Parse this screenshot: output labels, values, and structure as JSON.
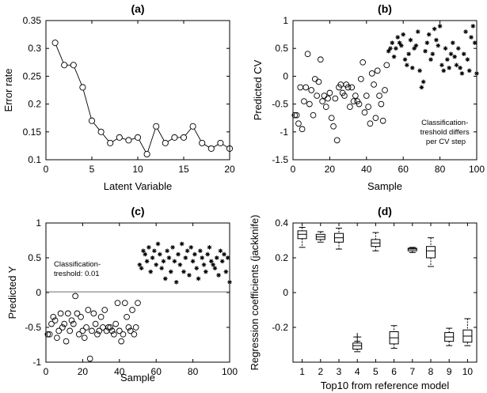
{
  "figure": {
    "panels": [
      {
        "chart_data": {
          "type": "line",
          "title": "(a)",
          "xlabel": "Latent Variable",
          "ylabel": "Error rate",
          "xlim": [
            0,
            20
          ],
          "ylim": [
            0.1,
            0.35
          ],
          "xticks": [
            0,
            5,
            10,
            15,
            20
          ],
          "xtick_labels": [
            "0",
            "5",
            "10",
            "15",
            "20"
          ],
          "yticks": [
            0.1,
            0.15,
            0.2,
            0.25,
            0.3,
            0.35
          ],
          "ytick_labels": [
            "0.1",
            "0.15",
            "0.2",
            "0.25",
            "0.3",
            "0.35"
          ],
          "series": [
            {
              "name": "error rate",
              "x": [
                1,
                2,
                3,
                4,
                5,
                6,
                7,
                8,
                9,
                10,
                11,
                12,
                13,
                14,
                15,
                16,
                17,
                18,
                19,
                20
              ],
              "y": [
                0.31,
                0.27,
                0.27,
                0.23,
                0.17,
                0.15,
                0.13,
                0.14,
                0.135,
                0.14,
                0.11,
                0.16,
                0.13,
                0.14,
                0.14,
                0.16,
                0.13,
                0.12,
                0.13,
                0.12
              ]
            }
          ],
          "annotations": []
        }
      },
      {
        "chart_data": {
          "type": "scatter",
          "title": "(b)",
          "xlabel": "Sample",
          "ylabel": "Predicted CV",
          "xlim": [
            0,
            100
          ],
          "ylim": [
            -1.5,
            1
          ],
          "xticks": [
            0,
            20,
            40,
            60,
            80,
            100
          ],
          "xtick_labels": [
            "0",
            "20",
            "40",
            "60",
            "80",
            "100"
          ],
          "yticks": [
            -1.5,
            -1,
            -0.5,
            0,
            0.5,
            1
          ],
          "ytick_labels": [
            "-1.5",
            "-1",
            "-0.5",
            "0",
            "0.5",
            "1"
          ],
          "series": [
            {
              "name": "class 1",
              "marker": "circle",
              "x": [
                1,
                2,
                3,
                4,
                5,
                6,
                7,
                8,
                9,
                10,
                11,
                12,
                13,
                14,
                15,
                16,
                17,
                18,
                19,
                20,
                21,
                22,
                23,
                24,
                25,
                26,
                27,
                28,
                29,
                30,
                31,
                32,
                33,
                34,
                35,
                36,
                37,
                38,
                39,
                40,
                41,
                42,
                43,
                44,
                45,
                46,
                47,
                48,
                49,
                50,
                51
              ],
              "y": [
                -0.7,
                -0.7,
                -0.85,
                -0.2,
                -0.95,
                -0.45,
                -0.2,
                0.4,
                -0.5,
                -0.25,
                -0.7,
                -0.05,
                -0.35,
                -0.1,
                0.3,
                -0.45,
                -0.35,
                -0.55,
                -0.4,
                -0.3,
                -0.75,
                -0.9,
                -0.4,
                -1.15,
                -0.2,
                -0.15,
                -0.3,
                -0.35,
                -0.15,
                -0.2,
                -0.55,
                -0.2,
                -0.45,
                -0.35,
                -0.45,
                -0.5,
                -0.05,
                0.25,
                -0.65,
                -0.35,
                -0.55,
                -0.85,
                0.05,
                -0.15,
                -0.75,
                0.1,
                -0.35,
                -0.5,
                -0.8,
                -0.25,
                0.2
              ]
            },
            {
              "name": "class 2",
              "marker": "star",
              "x": [
                52,
                53,
                54,
                55,
                56,
                57,
                58,
                59,
                60,
                61,
                62,
                63,
                64,
                65,
                66,
                67,
                68,
                69,
                70,
                71,
                72,
                73,
                74,
                75,
                76,
                77,
                78,
                79,
                80,
                81,
                82,
                83,
                84,
                85,
                86,
                87,
                88,
                89,
                90,
                91,
                92,
                93,
                94,
                95,
                96,
                97,
                98,
                99,
                100
              ],
              "y": [
                0.45,
                0.5,
                0.6,
                0.35,
                0.5,
                0.7,
                0.6,
                0.55,
                0.75,
                0.3,
                0.2,
                0.4,
                0.65,
                0.15,
                0.5,
                0.55,
                0.8,
                0.1,
                -0.2,
                -0.1,
                0.45,
                0.6,
                0.75,
                0.3,
                0.4,
                0.85,
                0.65,
                0.55,
                0.9,
                0.2,
                0.1,
                0.5,
                0.3,
                0.15,
                0.4,
                0.6,
                0.35,
                0.2,
                0.5,
                0.15,
                0.05,
                0.4,
                0.8,
                0.3,
                0.1,
                0.7,
                0.9,
                0.6,
                0.05
              ]
            }
          ],
          "annotations": [
            {
              "lines": [
                "Classification-",
                "treshold differs",
                "per CV step"
              ],
              "x": 83,
              "y": -0.75
            }
          ]
        }
      },
      {
        "chart_data": {
          "type": "scatter",
          "title": "(c)",
          "xlabel": "Sample",
          "ylabel": "Predicted Y",
          "xlim": [
            0,
            100
          ],
          "ylim": [
            -1,
            1
          ],
          "xticks": [
            0,
            20,
            40,
            60,
            80,
            100
          ],
          "xtick_labels": [
            "0",
            "20",
            "40",
            "60",
            "80",
            "100"
          ],
          "yticks": [
            -1,
            -0.5,
            0,
            0.5,
            1
          ],
          "ytick_labels": [
            "-1",
            "-0.5",
            "0",
            "0.5",
            "1"
          ],
          "threshold": 0.01,
          "series": [
            {
              "name": "class 1",
              "marker": "circle",
              "x": [
                1,
                2,
                3,
                4,
                5,
                6,
                7,
                8,
                9,
                10,
                11,
                12,
                13,
                14,
                15,
                16,
                17,
                18,
                19,
                20,
                21,
                22,
                23,
                24,
                25,
                26,
                27,
                28,
                29,
                30,
                31,
                32,
                33,
                34,
                35,
                36,
                37,
                38,
                39,
                40,
                41,
                42,
                43,
                44,
                45,
                46,
                47,
                48,
                49,
                50
              ],
              "y": [
                -0.6,
                -0.6,
                -0.45,
                -0.35,
                -0.4,
                -0.65,
                -0.55,
                -0.3,
                -0.5,
                -0.45,
                -0.7,
                -0.3,
                -0.55,
                -0.4,
                -0.45,
                -0.05,
                -0.3,
                -0.6,
                -0.35,
                -0.55,
                -0.65,
                -0.5,
                -0.25,
                -0.95,
                -0.55,
                -0.3,
                -0.45,
                -0.6,
                -0.55,
                -0.35,
                -0.5,
                -0.25,
                -0.55,
                -0.5,
                -0.5,
                -0.55,
                -0.6,
                -0.45,
                -0.15,
                -0.55,
                -0.7,
                -0.6,
                -0.15,
                -0.35,
                -0.5,
                -0.55,
                -0.25,
                -0.6,
                -0.5,
                -0.15
              ]
            },
            {
              "name": "class 2",
              "marker": "star",
              "x": [
                51,
                52,
                53,
                54,
                55,
                56,
                57,
                58,
                59,
                60,
                61,
                62,
                63,
                64,
                65,
                66,
                67,
                68,
                69,
                70,
                71,
                72,
                73,
                74,
                75,
                76,
                77,
                78,
                79,
                80,
                81,
                82,
                83,
                84,
                85,
                86,
                87,
                88,
                89,
                90,
                91,
                92,
                93,
                94,
                95,
                96,
                97,
                98,
                99,
                100
              ],
              "y": [
                0.4,
                0.35,
                0.6,
                0.55,
                0.45,
                0.65,
                0.3,
                0.5,
                0.6,
                0.4,
                0.7,
                0.55,
                0.35,
                0.45,
                0.2,
                0.6,
                0.5,
                0.3,
                0.65,
                0.45,
                0.15,
                0.55,
                0.4,
                0.7,
                0.3,
                0.5,
                0.6,
                0.25,
                0.65,
                0.45,
                0.55,
                0.35,
                0.2,
                0.6,
                0.5,
                0.4,
                0.3,
                0.55,
                0.65,
                0.45,
                0.4,
                0.35,
                0.5,
                0.25,
                0.6,
                0.45,
                0.55,
                0.3,
                0.5,
                0.15
              ]
            }
          ],
          "annotations": [
            {
              "lines": [
                "Classification-",
                "treshold: 0.01"
              ],
              "x": 4,
              "y": 0.25
            }
          ]
        }
      },
      {
        "chart_data": {
          "type": "box",
          "title": "(d)",
          "xlabel": "Top10 from reference model",
          "ylabel": "Regression coefficients (jackknife)",
          "xlim": [
            0.5,
            10.5
          ],
          "ylim": [
            -0.4,
            0.4
          ],
          "categories": [
            "1",
            "2",
            "3",
            "4",
            "5",
            "6",
            "7",
            "8",
            "9",
            "10"
          ],
          "yticks": [
            -0.2,
            0,
            0.2,
            0.4
          ],
          "ytick_labels": [
            "-0.2",
            "0",
            "0.2",
            "0.4"
          ],
          "boxes": [
            {
              "whisker_low": 0.26,
              "q1": 0.31,
              "median": 0.335,
              "q3": 0.355,
              "whisker_high": 0.375,
              "outliers": []
            },
            {
              "whisker_low": 0.29,
              "q1": 0.305,
              "median": 0.32,
              "q3": 0.335,
              "whisker_high": 0.35,
              "outliers": []
            },
            {
              "whisker_low": 0.25,
              "q1": 0.29,
              "median": 0.315,
              "q3": 0.34,
              "whisker_high": 0.37,
              "outliers": []
            },
            {
              "whisker_low": -0.34,
              "q1": -0.325,
              "median": -0.305,
              "q3": -0.29,
              "whisker_high": -0.28,
              "outliers": [
                -0.255
              ]
            },
            {
              "whisker_low": 0.24,
              "q1": 0.265,
              "median": 0.285,
              "q3": 0.305,
              "whisker_high": 0.345,
              "outliers": []
            },
            {
              "whisker_low": -0.32,
              "q1": -0.295,
              "median": -0.26,
              "q3": -0.225,
              "whisker_high": -0.19,
              "outliers": []
            },
            {
              "whisker_low": 0.23,
              "q1": 0.24,
              "median": 0.25,
              "q3": 0.255,
              "whisker_high": 0.26,
              "outliers": []
            },
            {
              "whisker_low": 0.15,
              "q1": 0.2,
              "median": 0.24,
              "q3": 0.265,
              "whisker_high": 0.315,
              "outliers": []
            },
            {
              "whisker_low": -0.305,
              "q1": -0.28,
              "median": -0.255,
              "q3": -0.23,
              "whisker_high": -0.205,
              "outliers": []
            },
            {
              "whisker_low": -0.305,
              "q1": -0.285,
              "median": -0.25,
              "q3": -0.215,
              "whisker_high": -0.15,
              "outliers": []
            }
          ]
        }
      }
    ]
  }
}
